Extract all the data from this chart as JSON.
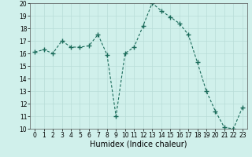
{
  "x": [
    0,
    1,
    2,
    3,
    4,
    5,
    6,
    7,
    8,
    9,
    10,
    11,
    12,
    13,
    14,
    15,
    16,
    17,
    18,
    19,
    20,
    21,
    22,
    23
  ],
  "y": [
    16.1,
    16.3,
    16.0,
    17.0,
    16.5,
    16.5,
    16.6,
    17.5,
    15.9,
    11.0,
    16.0,
    16.5,
    18.2,
    20.0,
    19.4,
    18.9,
    18.4,
    17.5,
    15.3,
    13.0,
    11.4,
    10.1,
    10.0,
    11.7
  ],
  "line_color": "#1a6b5a",
  "marker": "+",
  "marker_size": 4,
  "bg_color": "#d0f0eb",
  "grid_color": "#b8ddd8",
  "xlabel": "Humidex (Indice chaleur)",
  "xlabel_fontsize": 7,
  "xlim": [
    -0.5,
    23.5
  ],
  "ylim": [
    10,
    20
  ],
  "yticks": [
    10,
    11,
    12,
    13,
    14,
    15,
    16,
    17,
    18,
    19,
    20
  ],
  "xticks": [
    0,
    1,
    2,
    3,
    4,
    5,
    6,
    7,
    8,
    9,
    10,
    11,
    12,
    13,
    14,
    15,
    16,
    17,
    18,
    19,
    20,
    21,
    22,
    23
  ],
  "tick_fontsize": 5.5,
  "figsize": [
    3.2,
    2.0
  ],
  "dpi": 100
}
